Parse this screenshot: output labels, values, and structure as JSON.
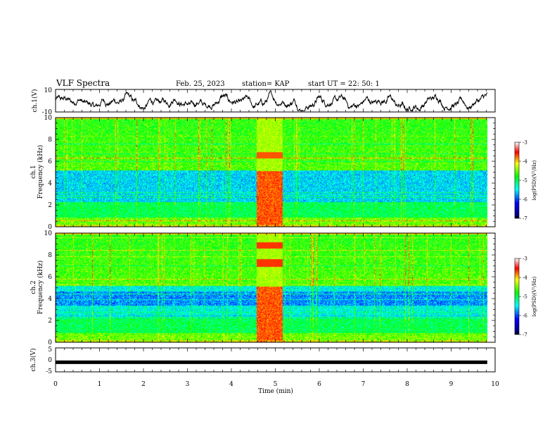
{
  "header": {
    "title": "VLF Spectra",
    "date": "Feb. 25, 2023",
    "station": "station= KAP",
    "start_time": "start  UT =  22: 50: 1"
  },
  "chart_data": [
    {
      "type": "line",
      "panel": "ch1-waveform",
      "ylabel": "ch.1(V)",
      "ylim": [
        -10,
        10
      ],
      "ytick_labels": [
        "10",
        "-10"
      ],
      "xlim": [
        0,
        10
      ]
    },
    {
      "type": "heatmap",
      "panel": "ch1-spectrogram",
      "ylabel": "ch.1\nFrequency  (kHz)",
      "ylim": [
        0,
        10
      ],
      "ytick_labels": [
        "0",
        "2",
        "4",
        "6",
        "8",
        "10"
      ],
      "xlim": [
        0,
        10
      ],
      "colorbar": {
        "label": "log(PSD)(V²/Hz)",
        "range": [
          -7,
          -3
        ],
        "tick_labels": [
          "-3",
          "-4",
          "-5",
          "-6",
          "-7"
        ]
      }
    },
    {
      "type": "heatmap",
      "panel": "ch2-spectrogram",
      "ylabel": "ch.2\nFrequency  (kHz)",
      "ylim": [
        0,
        10
      ],
      "ytick_labels": [
        "0",
        "2",
        "4",
        "6",
        "8",
        "10"
      ],
      "xlim": [
        0,
        10
      ],
      "colorbar": {
        "label": "log(PSD)(V²/Hz)",
        "range": [
          -7,
          -3
        ],
        "tick_labels": [
          "-3",
          "-4",
          "-5",
          "-6",
          "-7"
        ]
      }
    },
    {
      "type": "line",
      "panel": "ch3-waveform",
      "ylabel": "ch.3(V)",
      "ylim": [
        -5,
        5
      ],
      "ytick_labels": [
        "5",
        "0",
        "-5"
      ],
      "xlim": [
        0,
        10
      ],
      "xlabel": "Time  (min)",
      "xtick_labels": [
        "0",
        "1",
        "2",
        "3",
        "4",
        "5",
        "6",
        "7",
        "8",
        "9",
        "10"
      ]
    }
  ],
  "colors": {
    "frame": "#000000",
    "trace": "#000000",
    "colormap": [
      "#000000",
      "#0000ff",
      "#00ffff",
      "#00ff00",
      "#ffff00",
      "#ff0000",
      "#ffffff"
    ]
  }
}
